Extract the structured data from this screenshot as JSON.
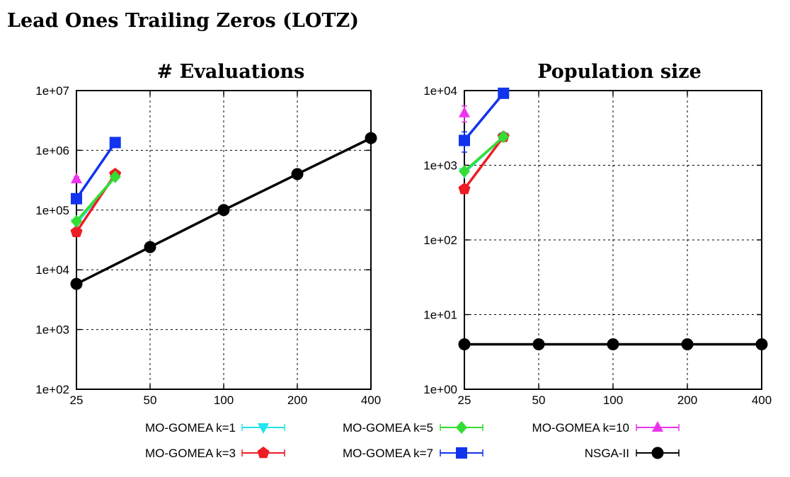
{
  "title": "Lead Ones Trailing Zeros (LOTZ)",
  "colors": {
    "k1": "#22e5ef",
    "k3": "#ee1c25",
    "k5": "#33dd33",
    "k7": "#1133ee",
    "k10": "#ee33ee",
    "nsga": "#000000"
  },
  "legend": [
    {
      "key": "k1",
      "label": "MO-GOMEA k=1",
      "marker": "triangle-down"
    },
    {
      "key": "k5",
      "label": "MO-GOMEA k=5",
      "marker": "diamond"
    },
    {
      "key": "k10",
      "label": "MO-GOMEA k=10",
      "marker": "triangle-up"
    },
    {
      "key": "k3",
      "label": "MO-GOMEA k=3",
      "marker": "pentagon"
    },
    {
      "key": "k7",
      "label": "MO-GOMEA k=7",
      "marker": "square"
    },
    {
      "key": "nsga",
      "label": "NSGA-II",
      "marker": "circle"
    }
  ],
  "chart_data": [
    {
      "type": "line",
      "title": "# Evaluations",
      "xlabel": "",
      "ylabel": "",
      "x_scale": "log",
      "y_scale": "log",
      "xlim": [
        25,
        400
      ],
      "ylim": [
        100,
        10000000
      ],
      "x_ticks": [
        25,
        50,
        100,
        200,
        400
      ],
      "x_tick_labels": [
        "25",
        "50",
        "100",
        "200",
        "400"
      ],
      "y_ticks": [
        100,
        1000,
        10000,
        100000,
        1000000,
        10000000
      ],
      "y_tick_labels": [
        "1e+02",
        "1e+03",
        "1e+04",
        "1e+05",
        "1e+06",
        "1e+07"
      ],
      "grid": true,
      "series": [
        {
          "key": "k10",
          "x": [
            25
          ],
          "y": [
            330000
          ],
          "err": [
            [
              300000,
              360000
            ]
          ]
        },
        {
          "key": "k1",
          "x": [
            25,
            36
          ],
          "y": [
            60000,
            360000
          ]
        },
        {
          "key": "k3",
          "x": [
            25,
            36
          ],
          "y": [
            43000,
            400000
          ]
        },
        {
          "key": "k5",
          "x": [
            25,
            36
          ],
          "y": [
            65000,
            360000
          ]
        },
        {
          "key": "k7",
          "x": [
            25,
            36
          ],
          "y": [
            155000,
            1350000
          ],
          "err": [
            [
              130000,
              180000
            ],
            [
              1300000,
              1400000
            ]
          ]
        },
        {
          "key": "nsga",
          "x": [
            25,
            50,
            100,
            200,
            400
          ],
          "y": [
            5800,
            24000,
            100000,
            400000,
            1600000
          ]
        }
      ]
    },
    {
      "type": "line",
      "title": "Population size",
      "xlabel": "",
      "ylabel": "",
      "x_scale": "log",
      "y_scale": "log",
      "xlim": [
        25,
        400
      ],
      "ylim": [
        1,
        10000
      ],
      "x_ticks": [
        25,
        50,
        100,
        200,
        400
      ],
      "x_tick_labels": [
        "25",
        "50",
        "100",
        "200",
        "400"
      ],
      "y_ticks": [
        1,
        10,
        100,
        1000,
        10000
      ],
      "y_tick_labels": [
        "1e+00",
        "1e+01",
        "1e+02",
        "1e+03",
        "1e+04"
      ],
      "grid": true,
      "series": [
        {
          "key": "k10",
          "x": [
            25
          ],
          "y": [
            5000
          ],
          "err": [
            [
              3800,
              6200
            ]
          ]
        },
        {
          "key": "k1",
          "x": [
            25,
            36
          ],
          "y": [
            800,
            2400
          ]
        },
        {
          "key": "k3",
          "x": [
            25,
            36
          ],
          "y": [
            480,
            2400
          ]
        },
        {
          "key": "k5",
          "x": [
            25,
            36
          ],
          "y": [
            830,
            2400
          ]
        },
        {
          "key": "k7",
          "x": [
            25,
            36
          ],
          "y": [
            2150,
            9200
          ],
          "err": [
            [
              1500,
              2800
            ],
            [
              8800,
              9600
            ]
          ]
        },
        {
          "key": "nsga",
          "x": [
            25,
            50,
            100,
            200,
            400
          ],
          "y": [
            4,
            4,
            4,
            4,
            4
          ]
        }
      ]
    }
  ]
}
